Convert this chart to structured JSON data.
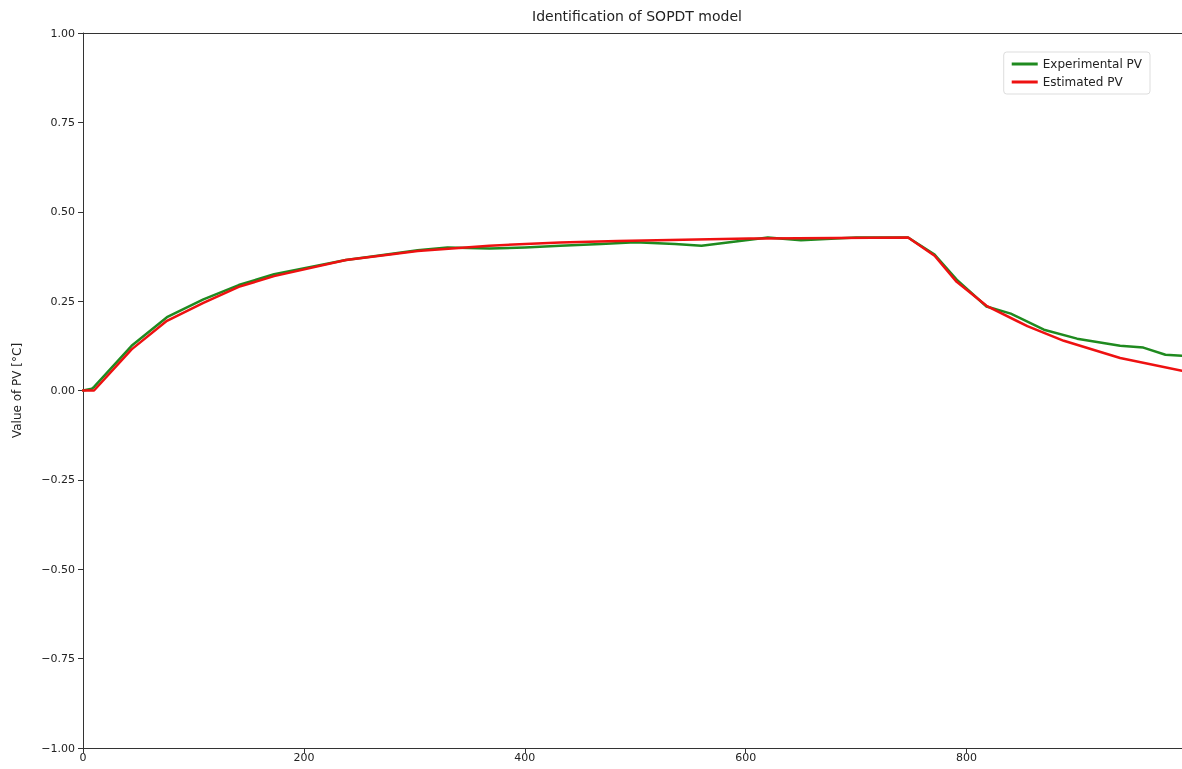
{
  "chart_data": {
    "type": "line",
    "title": "Identification of SOPDT model",
    "ylabel": "Value of PV [°C]",
    "xlim": [
      0,
      995
    ],
    "xticks": [
      0,
      200,
      400,
      600,
      800
    ],
    "ylim": [
      -1,
      1
    ],
    "yticks": [
      {
        "value": -1,
        "label": "−1.00"
      },
      {
        "value": -0.75,
        "label": "−0.75"
      },
      {
        "value": -0.5,
        "label": "−0.50"
      },
      {
        "value": -0.25,
        "label": "−0.25"
      },
      {
        "value": 0,
        "label": "0.00"
      },
      {
        "value": 0.25,
        "label": "0.25"
      },
      {
        "value": 0.5,
        "label": "0.50"
      },
      {
        "value": 0.75,
        "label": "0.75"
      },
      {
        "value": 1,
        "label": "1.00"
      }
    ],
    "grid": false,
    "legend": "top right",
    "marker": "none",
    "line_style": "solid",
    "series": [
      {
        "name": "Experimental PV",
        "color": "#1f8a1f",
        "x": [
          0,
          8,
          10,
          44,
          76,
          109,
          141,
          173,
          238,
          303,
          330,
          368,
          400,
          432,
          469,
          500,
          536,
          560,
          600,
          620,
          650,
          700,
          747,
          771,
          791,
          818,
          840,
          870,
          900,
          939,
          960,
          980,
          995
        ],
        "values": [
          0,
          0.005,
          0.01,
          0.125,
          0.205,
          0.255,
          0.295,
          0.325,
          0.365,
          0.392,
          0.4,
          0.397,
          0.4,
          0.405,
          0.41,
          0.415,
          0.41,
          0.405,
          0.42,
          0.428,
          0.42,
          0.428,
          0.428,
          0.38,
          0.31,
          0.235,
          0.215,
          0.17,
          0.145,
          0.125,
          0.12,
          0.1,
          0.097
        ]
      },
      {
        "name": "Estimated PV",
        "color": "#ee1111",
        "x": [
          0,
          10,
          44,
          76,
          109,
          141,
          173,
          238,
          303,
          368,
          432,
          484,
          603,
          747,
          771,
          791,
          818,
          855,
          888,
          939,
          995
        ],
        "values": [
          0,
          0,
          0.115,
          0.195,
          0.245,
          0.29,
          0.32,
          0.365,
          0.39,
          0.405,
          0.414,
          0.418,
          0.425,
          0.428,
          0.377,
          0.304,
          0.237,
          0.18,
          0.139,
          0.091,
          0.055
        ]
      }
    ]
  }
}
